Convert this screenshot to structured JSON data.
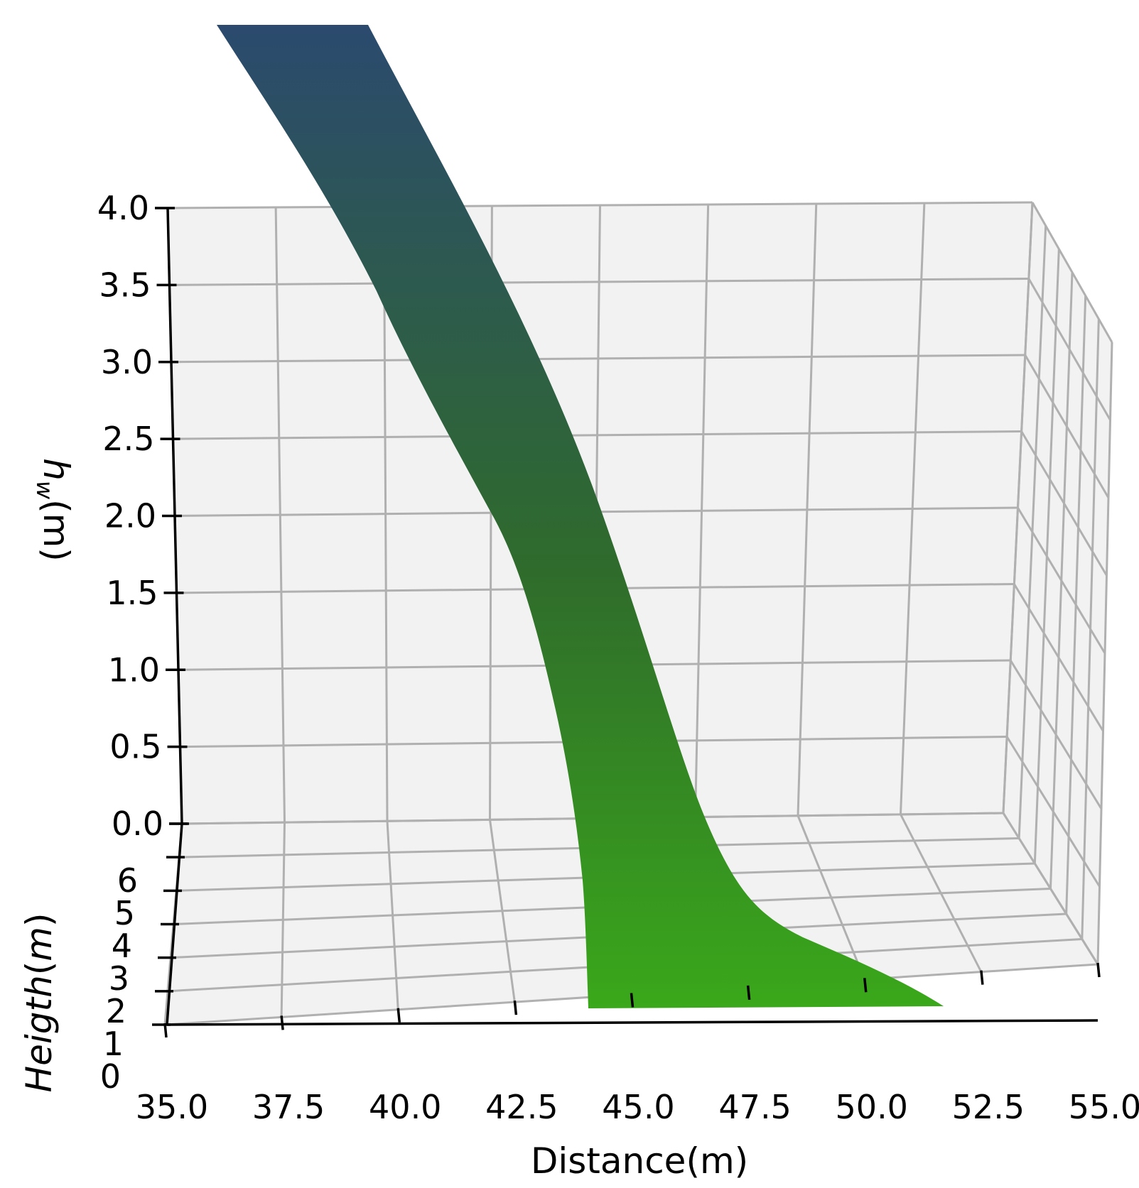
{
  "chart_data": {
    "type": "surface3d",
    "title": "",
    "xlabel": "Distance(m)",
    "ylabel_parts": [
      "Heigth",
      "(",
      "m",
      ")"
    ],
    "zlabel_parts": [
      "h",
      "w",
      "(m)"
    ],
    "x_ticks": [
      "35.0",
      "37.5",
      "40.0",
      "42.5",
      "45.0",
      "47.5",
      "50.0",
      "52.5",
      "55.0"
    ],
    "y_ticks": [
      "0",
      "1",
      "2",
      "3",
      "4",
      "5",
      "6"
    ],
    "z_ticks": [
      "0.0",
      "0.5",
      "1.0",
      "1.5",
      "2.0",
      "2.5",
      "3.0",
      "3.5",
      "4.0"
    ],
    "xlim": [
      35.0,
      55.0
    ],
    "ylim": [
      0,
      6
    ],
    "zlim": [
      0.0,
      4.0
    ],
    "grid": true,
    "pane_color": "#f2f2f2",
    "colormap": "viridis-like (navy to green)",
    "surface_colors": {
      "top": "#2b4a6e",
      "middle": "#2f6b2c",
      "bottom": "#3aa81a"
    }
  }
}
